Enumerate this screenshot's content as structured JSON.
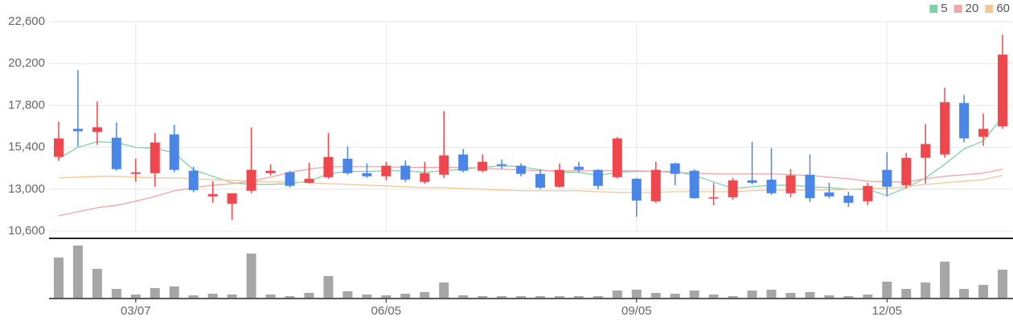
{
  "chart_data": {
    "type": "candlestick",
    "categories": [
      null,
      null,
      null,
      null,
      "03/07",
      null,
      null,
      null,
      null,
      null,
      null,
      null,
      null,
      null,
      null,
      null,
      null,
      "06/05",
      null,
      null,
      null,
      null,
      null,
      null,
      null,
      null,
      null,
      null,
      null,
      null,
      "09/05",
      null,
      null,
      null,
      null,
      null,
      null,
      null,
      null,
      null,
      null,
      null,
      null,
      "12/05",
      null,
      null,
      null,
      null,
      null,
      null
    ],
    "open": [
      14850,
      16460,
      16280,
      15950,
      13880,
      13920,
      16140,
      14060,
      12590,
      12170,
      12910,
      13920,
      13970,
      13370,
      13690,
      14750,
      13920,
      13740,
      14350,
      13420,
      13830,
      14990,
      14060,
      14430,
      14350,
      13880,
      13140,
      14290,
      14110,
      13690,
      13600,
      12310,
      14480,
      14060,
      12490,
      12540,
      13510,
      13550,
      12770,
      13830,
      12820,
      12630,
      12310,
      14110,
      13230,
      14800,
      14990,
      17940,
      16000,
      16600
    ],
    "high": [
      16880,
      19830,
      18030,
      16830,
      14750,
      16230,
      16690,
      14290,
      13460,
      12770,
      16550,
      14430,
      14060,
      14520,
      16230,
      15450,
      14480,
      14570,
      14660,
      14570,
      17480,
      15310,
      14990,
      14710,
      14480,
      14150,
      14480,
      14570,
      14150,
      16000,
      13650,
      14570,
      14520,
      14150,
      13370,
      13650,
      15720,
      15350,
      14150,
      14990,
      13370,
      12860,
      13370,
      15120,
      15080,
      16740,
      18820,
      18400,
      17340,
      21860
    ],
    "low": [
      14620,
      15450,
      15540,
      14060,
      13420,
      13140,
      13970,
      12820,
      12220,
      11250,
      12770,
      13790,
      13090,
      13320,
      13600,
      13830,
      13650,
      13510,
      13420,
      13320,
      13650,
      13970,
      13970,
      14150,
      13740,
      13000,
      13090,
      13970,
      13000,
      13600,
      11430,
      12220,
      13230,
      12450,
      12080,
      12400,
      13280,
      12680,
      12540,
      12260,
      12490,
      11990,
      12080,
      12590,
      13050,
      13320,
      14800,
      15680,
      15490,
      16460
    ],
    "close": [
      15910,
      16320,
      16550,
      14150,
      13970,
      15680,
      14110,
      12950,
      12720,
      12770,
      14110,
      14060,
      13190,
      13600,
      14850,
      13920,
      13740,
      14350,
      13550,
      13920,
      14940,
      14060,
      14570,
      14340,
      13880,
      13090,
      14110,
      14110,
      13190,
      15910,
      12350,
      14110,
      13880,
      12490,
      12540,
      13510,
      13370,
      12770,
      13790,
      12490,
      12590,
      12220,
      13190,
      13140,
      14800,
      15590,
      17990,
      15910,
      16460,
      20710
    ],
    "up_color": "#f0474f",
    "down_color": "#4a86e8",
    "series": [
      {
        "name": "5",
        "color": "#7dd3a8",
        "values": [
          14750,
          15400,
          15720,
          15680,
          15400,
          15350,
          15080,
          14110,
          13740,
          13370,
          13280,
          13280,
          13320,
          13460,
          13880,
          14020,
          14020,
          14060,
          14060,
          13970,
          14060,
          14150,
          14250,
          14340,
          14290,
          14110,
          13970,
          13970,
          13790,
          13970,
          14020,
          14020,
          14020,
          13790,
          13420,
          13050,
          13140,
          13230,
          13230,
          13140,
          13090,
          13000,
          13000,
          12630,
          13090,
          13650,
          14430,
          15310,
          15770,
          17150
        ]
      },
      {
        "name": "20",
        "color": "#f2a5a8",
        "values": [
          11480,
          11710,
          11940,
          12080,
          12310,
          12590,
          12910,
          13090,
          13230,
          13320,
          13460,
          13690,
          13970,
          14150,
          14290,
          14290,
          14290,
          14290,
          14250,
          14250,
          14250,
          14250,
          14200,
          14150,
          14110,
          14060,
          14060,
          14060,
          14060,
          14060,
          14060,
          14020,
          13970,
          13920,
          13880,
          13880,
          13880,
          13880,
          13830,
          13790,
          13690,
          13600,
          13460,
          13420,
          13420,
          13600,
          13740,
          13830,
          13920,
          14150
        ]
      },
      {
        "name": "60",
        "color": "#f2c894",
        "values": [
          13650,
          13690,
          13740,
          13740,
          13690,
          13650,
          13650,
          13600,
          13550,
          13510,
          13460,
          13420,
          13420,
          13370,
          13320,
          13280,
          13230,
          13190,
          13140,
          13090,
          13090,
          13050,
          13000,
          12950,
          12910,
          12910,
          12910,
          12910,
          12860,
          12820,
          12820,
          12820,
          12860,
          12860,
          12860,
          12860,
          12910,
          12950,
          12950,
          12950,
          12950,
          13000,
          13050,
          13050,
          13140,
          13280,
          13370,
          13460,
          13550,
          13790
        ]
      }
    ],
    "volume": {
      "color": "#a6a6a6",
      "values": [
        50,
        65,
        36,
        11,
        4,
        12,
        14,
        3,
        5,
        4,
        55,
        4,
        2,
        6,
        27,
        8,
        4,
        3,
        5,
        7,
        19,
        3,
        2,
        2,
        2,
        2,
        2,
        2,
        2,
        9,
        10,
        6,
        5,
        9,
        4,
        2,
        9,
        10,
        6,
        7,
        3,
        2,
        4,
        20,
        11,
        19,
        45,
        11,
        16,
        35
      ]
    },
    "ylim": [
      10600,
      22600
    ],
    "yticks": [
      {
        "value": 10600,
        "label": "10,600"
      },
      {
        "value": 13000,
        "label": "13,000"
      },
      {
        "value": 15400,
        "label": "15,400"
      },
      {
        "value": 17800,
        "label": "17,800"
      },
      {
        "value": 20200,
        "label": "20,200"
      },
      {
        "value": 22600,
        "label": "22,600"
      }
    ],
    "grid": true,
    "legend": "top-right"
  }
}
